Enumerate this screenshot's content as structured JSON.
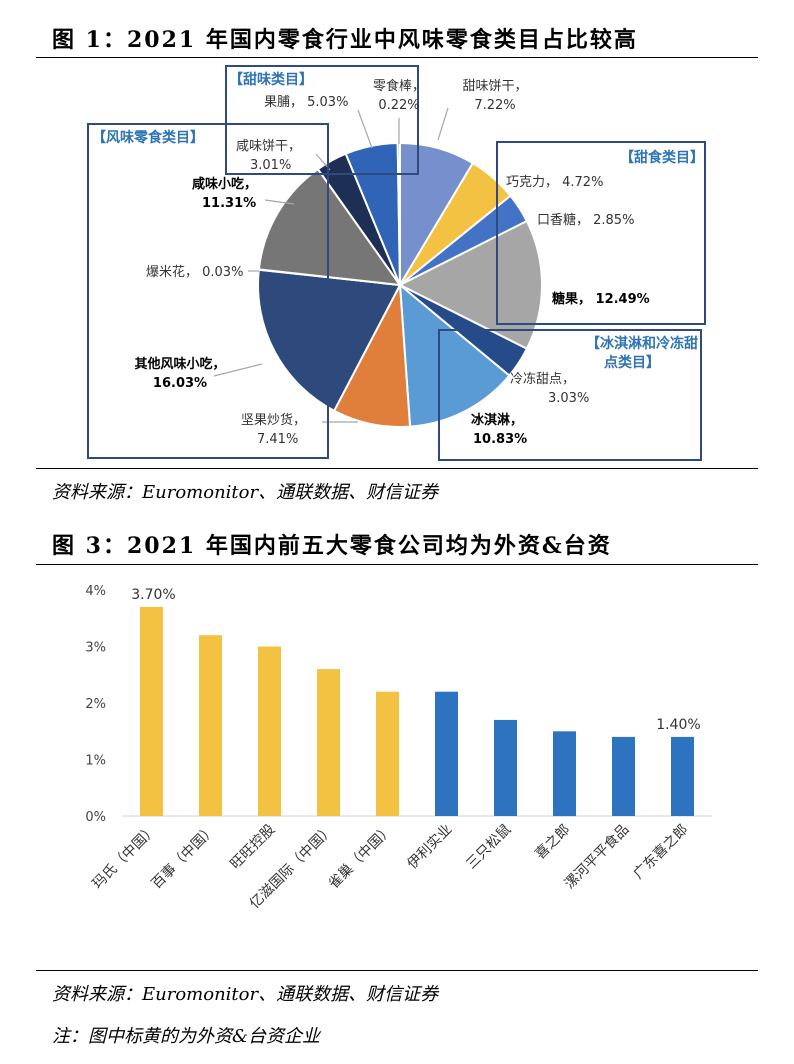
{
  "figure1": {
    "title": "图 1：2021 年国内零食行业中风味零食类目占比较高",
    "source": "资料来源：Euromonitor、通联数据、财信证券"
  },
  "figure3": {
    "title": "图 3：2021 年国内前五大零食公司均为外资&台资",
    "source": "资料来源：Euromonitor、通联数据、财信证券",
    "note": "注：图中标黄的为外资&台资企业"
  },
  "colors": {
    "accent_blue": "#2e74b5",
    "box_border": "#2f4a7f",
    "bar_yellow": "#f4c242",
    "bar_blue": "#2e73c0"
  },
  "chart_data": [
    {
      "type": "pie",
      "slices": [
        {
          "label": "甜味饼干",
          "value": 7.22,
          "text": "7.22%",
          "color": "#7590cc"
        },
        {
          "label": "巧克力",
          "value": 4.72,
          "text": "4.72%",
          "color": "#f4c242"
        },
        {
          "label": "口香糖",
          "value": 2.85,
          "text": "2.85%",
          "color": "#4472c4"
        },
        {
          "label": "糖果",
          "value": 12.49,
          "text": "12.49%",
          "color": "#a6a6a6"
        },
        {
          "label": "冷冻甜点",
          "value": 3.03,
          "text": "3.03%",
          "color": "#254b8a"
        },
        {
          "label": "冰淇淋",
          "value": 10.83,
          "text": "10.83%",
          "color": "#5b9bd5"
        },
        {
          "label": "坚果炒货",
          "value": 7.41,
          "text": "7.41%",
          "color": "#e07e3c"
        },
        {
          "label": "其他风味小吃",
          "value": 16.03,
          "text": "16.03%",
          "color": "#2e4a7d"
        },
        {
          "label": "爆米花",
          "value": 0.03,
          "text": "0.03%",
          "color": "#9a9a9a"
        },
        {
          "label": "咸味小吃",
          "value": 11.31,
          "text": "11.31%",
          "color": "#767676"
        },
        {
          "label": "咸味饼干",
          "value": 3.01,
          "text": "3.01%",
          "color": "#1d2f55"
        },
        {
          "label": "果脯",
          "value": 5.03,
          "text": "5.03%",
          "color": "#2f64b7"
        },
        {
          "label": "零食棒",
          "value": 0.22,
          "text": "0.22%",
          "color": "#7f7f7f"
        }
      ],
      "groups": [
        "【甜味类目】",
        "【风味零食类目】",
        "【甜食类目】",
        "【冰淇淋和冷冻甜点类目】"
      ]
    },
    {
      "type": "bar",
      "categories": [
        "玛氏（中国）",
        "百事（中国）",
        "旺旺控股",
        "亿滋国际（中国）",
        "雀巢（中国）",
        "伊利实业",
        "三只松鼠",
        "喜之郎",
        "漯河平平食品",
        "广东喜之郎"
      ],
      "values": [
        3.7,
        3.2,
        3.0,
        2.6,
        2.2,
        2.2,
        1.7,
        1.5,
        1.4,
        1.4
      ],
      "foreign_taiwan": [
        true,
        true,
        true,
        true,
        true,
        false,
        false,
        false,
        false,
        false
      ],
      "data_labels": {
        "0": "3.70%",
        "9": "1.40%"
      },
      "yticks": [
        "0%",
        "1%",
        "2%",
        "3%",
        "4%"
      ],
      "ylim": [
        0,
        4
      ],
      "xlabel": "",
      "ylabel": ""
    }
  ]
}
